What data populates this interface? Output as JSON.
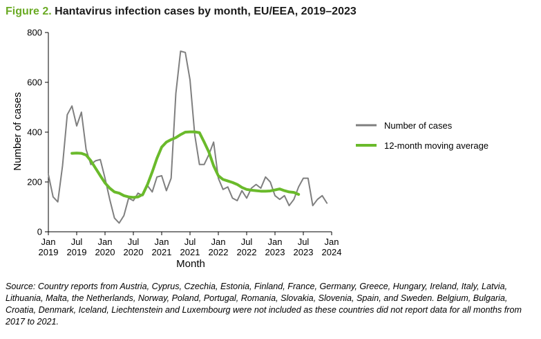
{
  "title": {
    "figure_label": "Figure 2.",
    "text": "Hantavirus infection cases by month, EU/EEA, 2019–2023"
  },
  "source": "Source: Country reports from Austria, Cyprus, Czechia, Estonia, Finland, France, Germany, Greece, Hungary, Ireland, Italy, Latvia, Lithuania, Malta, the Netherlands, Norway, Poland, Portugal, Romania, Slovakia, Slovenia, Spain, and Sweden. Belgium, Bulgaria, Croatia, Denmark, Iceland, Liechtenstein and Luxembourg were not included as these countries did not report data for all months from 2017 to 2021.",
  "chart_data": {
    "type": "line",
    "xlabel": "Month",
    "ylabel": "Number of cases",
    "ylim": [
      0,
      800
    ],
    "yticks": [
      0,
      200,
      400,
      600,
      800
    ],
    "xlim": [
      "2019-01",
      "2024-01"
    ],
    "xticks": [
      {
        "month": "2019-01",
        "line1": "Jan",
        "line2": "2019"
      },
      {
        "month": "2019-07",
        "line1": "Jul",
        "line2": "2019"
      },
      {
        "month": "2020-01",
        "line1": "Jan",
        "line2": "2020"
      },
      {
        "month": "2020-07",
        "line1": "Jul",
        "line2": "2020"
      },
      {
        "month": "2021-01",
        "line1": "Jan",
        "line2": "2021"
      },
      {
        "month": "2021-07",
        "line1": "Jul",
        "line2": "2021"
      },
      {
        "month": "2022-01",
        "line1": "Jan",
        "line2": "2022"
      },
      {
        "month": "2022-07",
        "line1": "Jul",
        "line2": "2022"
      },
      {
        "month": "2023-01",
        "line1": "Jan",
        "line2": "2023"
      },
      {
        "month": "2023-07",
        "line1": "Jul",
        "line2": "2023"
      },
      {
        "month": "2024-01",
        "line1": "Jan",
        "line2": "2024"
      }
    ],
    "grid": false,
    "legend_position": "right",
    "series": [
      {
        "name": "Number of cases",
        "color": "#7f7f7f",
        "start": "2019-01",
        "values": [
          230,
          140,
          120,
          265,
          470,
          505,
          425,
          480,
          330,
          270,
          285,
          290,
          215,
          130,
          55,
          35,
          65,
          135,
          125,
          155,
          145,
          185,
          160,
          220,
          225,
          165,
          215,
          555,
          725,
          720,
          610,
          390,
          270,
          270,
          310,
          360,
          215,
          170,
          180,
          135,
          125,
          165,
          135,
          175,
          190,
          175,
          220,
          200,
          145,
          130,
          145,
          105,
          130,
          180,
          215,
          215,
          105,
          130,
          145,
          115
        ]
      },
      {
        "name": "12-month moving average",
        "color": "#6aba2b",
        "start": "2019-06",
        "values": [
          315,
          316,
          315,
          308,
          285,
          255,
          225,
          196,
          175,
          160,
          155,
          145,
          140,
          138,
          140,
          150,
          190,
          240,
          295,
          340,
          360,
          370,
          378,
          390,
          400,
          401,
          401,
          398,
          360,
          320,
          265,
          225,
          210,
          204,
          198,
          190,
          178,
          170,
          167,
          165,
          163,
          163,
          164,
          168,
          172,
          165,
          160,
          158,
          150
        ]
      }
    ]
  }
}
